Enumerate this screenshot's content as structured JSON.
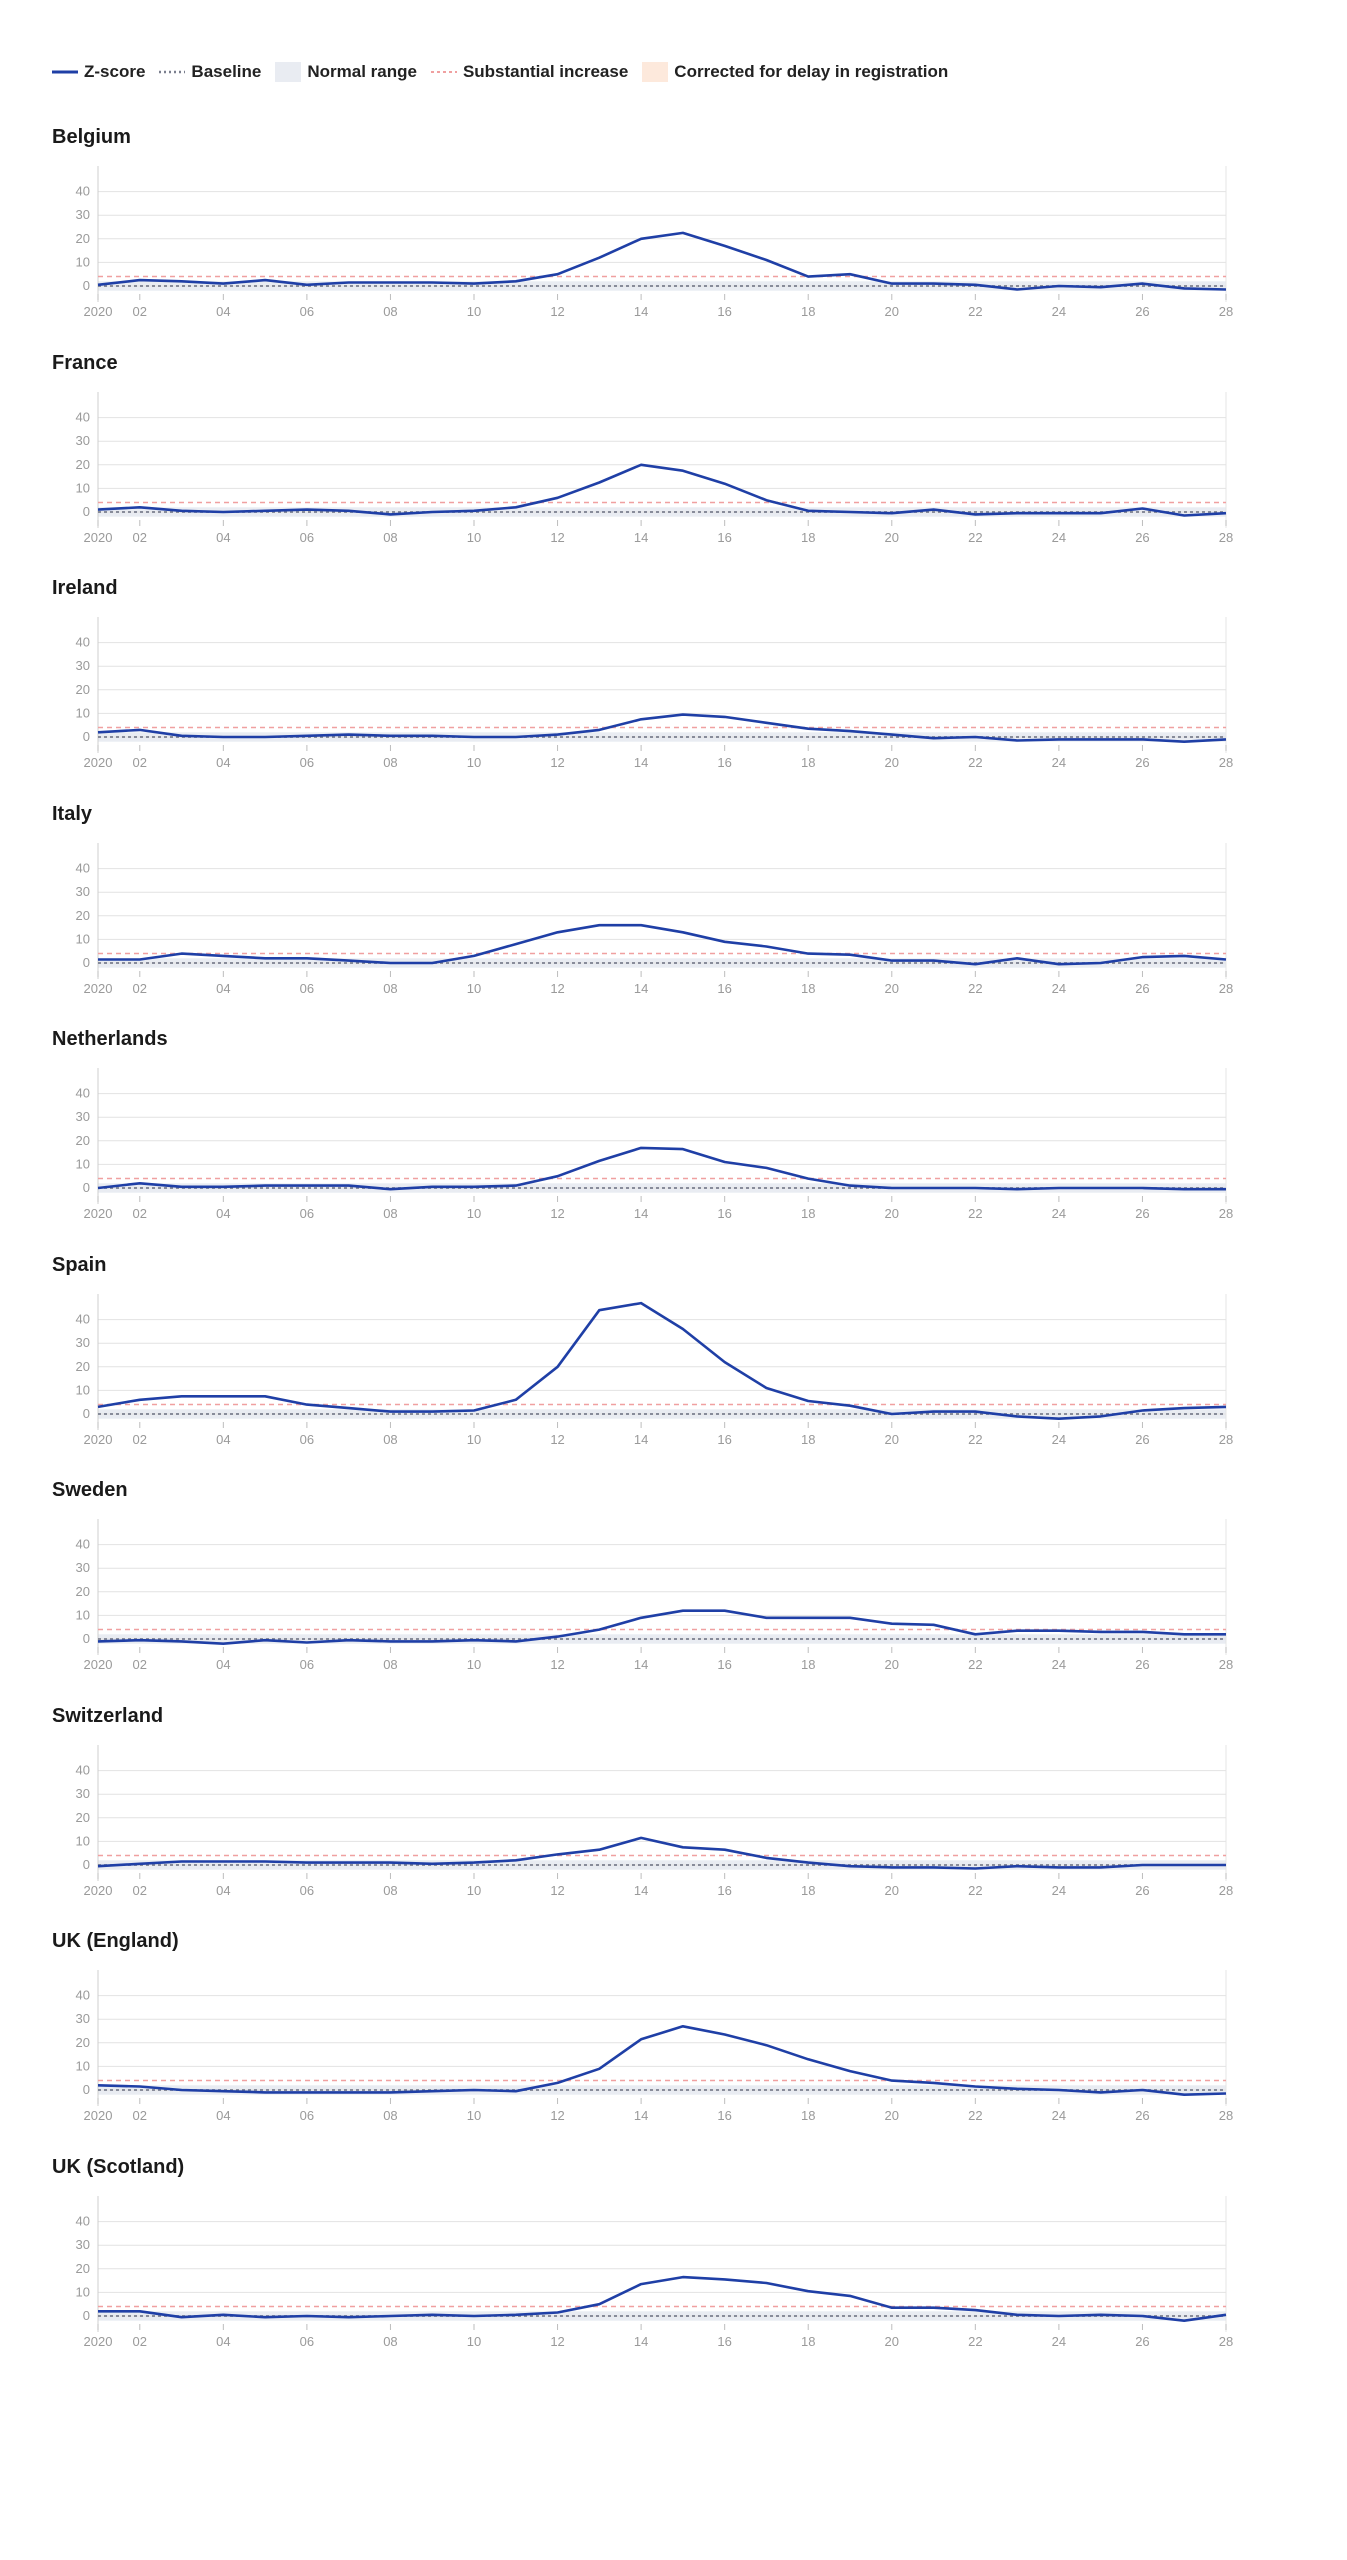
{
  "legend": {
    "items": [
      {
        "key": "zscore",
        "label": "Z-score",
        "icon": "solid-line-icon"
      },
      {
        "key": "baseline",
        "label": "Baseline",
        "icon": "dotted-line-icon"
      },
      {
        "key": "normal",
        "label": "Normal range",
        "icon": "shaded-box-icon"
      },
      {
        "key": "substantial",
        "label": "Substantial increase",
        "icon": "dashed-line-icon"
      },
      {
        "key": "corrected",
        "label": "Corrected for delay in registration",
        "icon": "shaded-box-icon"
      }
    ]
  },
  "colors": {
    "zscore": "#1f3fa6",
    "baseline": "#7a7f8e",
    "normal": "#e9ecf2",
    "substantial": "#f0a0a0",
    "corrected": "#fde9dc",
    "grid": "#e2e2e2",
    "tick": "#9a9a9a"
  },
  "chart_data": [
    {
      "type": "line",
      "title": "Belgium",
      "xticks": [
        "2020",
        "02",
        "04",
        "06",
        "08",
        "10",
        "12",
        "14",
        "16",
        "18",
        "20",
        "22",
        "24",
        "26",
        "28"
      ],
      "yticks": [
        "0",
        "10",
        "20",
        "30",
        "40"
      ],
      "ylim": [
        -3,
        45
      ],
      "x": [
        1,
        2,
        3,
        4,
        5,
        6,
        7,
        8,
        9,
        10,
        11,
        12,
        13,
        14,
        15,
        16,
        17,
        18,
        19,
        20,
        21,
        22,
        23,
        24,
        25,
        26,
        27,
        28
      ],
      "series": [
        {
          "values": [
            0.5,
            2.5,
            2,
            1,
            2.5,
            0.5,
            1.5,
            1.5,
            1.5,
            1,
            2,
            5,
            12,
            20,
            22.5,
            17,
            11,
            4,
            5,
            1,
            1,
            0.5,
            -1.5,
            0,
            -0.5,
            1,
            -1,
            -1.5
          ]
        }
      ],
      "baseline": 0,
      "normal_range": [
        -2,
        2
      ],
      "substantial_increase": 4
    },
    {
      "type": "line",
      "title": "France",
      "xticks": [
        "2020",
        "02",
        "04",
        "06",
        "08",
        "10",
        "12",
        "14",
        "16",
        "18",
        "20",
        "22",
        "24",
        "26",
        "28"
      ],
      "yticks": [
        "0",
        "10",
        "20",
        "30",
        "40"
      ],
      "ylim": [
        -3,
        45
      ],
      "x": [
        1,
        2,
        3,
        4,
        5,
        6,
        7,
        8,
        9,
        10,
        11,
        12,
        13,
        14,
        15,
        16,
        17,
        18,
        19,
        20,
        21,
        22,
        23,
        24,
        25,
        26,
        27,
        28
      ],
      "series": [
        {
          "values": [
            1,
            2,
            0.5,
            0,
            0.5,
            1,
            0.5,
            -1,
            0,
            0.5,
            2,
            6,
            12.5,
            20,
            17.5,
            12,
            5,
            0.5,
            0,
            -0.5,
            1,
            -1,
            -0.5,
            -0.5,
            -0.5,
            1.5,
            -1.5,
            -0.5
          ]
        }
      ],
      "baseline": 0,
      "normal_range": [
        -2,
        2
      ],
      "substantial_increase": 4
    },
    {
      "type": "line",
      "title": "Ireland",
      "xticks": [
        "2020",
        "02",
        "04",
        "06",
        "08",
        "10",
        "12",
        "14",
        "16",
        "18",
        "20",
        "22",
        "24",
        "26",
        "28"
      ],
      "yticks": [
        "0",
        "10",
        "20",
        "30",
        "40"
      ],
      "ylim": [
        -3,
        45
      ],
      "x": [
        1,
        2,
        3,
        4,
        5,
        6,
        7,
        8,
        9,
        10,
        11,
        12,
        13,
        14,
        15,
        16,
        17,
        18,
        19,
        20,
        21,
        22,
        23,
        24,
        25,
        26,
        27,
        28
      ],
      "series": [
        {
          "values": [
            2,
            3,
            0.5,
            0,
            0,
            0.5,
            1,
            0.5,
            0.5,
            0,
            0,
            1,
            3,
            7.5,
            9.5,
            8.5,
            6,
            3.5,
            2.5,
            1,
            -0.5,
            0,
            -1.5,
            -1,
            -1,
            -1,
            -2,
            -1
          ]
        }
      ],
      "baseline": 0,
      "normal_range": [
        -2,
        2
      ],
      "substantial_increase": 4
    },
    {
      "type": "line",
      "title": "Italy",
      "xticks": [
        "2020",
        "02",
        "04",
        "06",
        "08",
        "10",
        "12",
        "14",
        "16",
        "18",
        "20",
        "22",
        "24",
        "26",
        "28"
      ],
      "yticks": [
        "0",
        "10",
        "20",
        "30",
        "40"
      ],
      "ylim": [
        -3,
        45
      ],
      "x": [
        1,
        2,
        3,
        4,
        5,
        6,
        7,
        8,
        9,
        10,
        11,
        12,
        13,
        14,
        15,
        16,
        17,
        18,
        19,
        20,
        21,
        22,
        23,
        24,
        25,
        26,
        27,
        28
      ],
      "series": [
        {
          "values": [
            1.5,
            1.5,
            4,
            3,
            2,
            2,
            1,
            0,
            0,
            3,
            8,
            13,
            16,
            16,
            13,
            9,
            7,
            4,
            3.5,
            1,
            1,
            -0.5,
            2,
            -0.5,
            0,
            2.5,
            3,
            1.5
          ]
        }
      ],
      "baseline": 0,
      "normal_range": [
        -2,
        2
      ],
      "substantial_increase": 4
    },
    {
      "type": "line",
      "title": "Netherlands",
      "xticks": [
        "2020",
        "02",
        "04",
        "06",
        "08",
        "10",
        "12",
        "14",
        "16",
        "18",
        "20",
        "22",
        "24",
        "26",
        "28"
      ],
      "yticks": [
        "0",
        "10",
        "20",
        "30",
        "40"
      ],
      "ylim": [
        -3,
        45
      ],
      "x": [
        1,
        2,
        3,
        4,
        5,
        6,
        7,
        8,
        9,
        10,
        11,
        12,
        13,
        14,
        15,
        16,
        17,
        18,
        19,
        20,
        21,
        22,
        23,
        24,
        25,
        26,
        27,
        28
      ],
      "series": [
        {
          "values": [
            0,
            2,
            0.5,
            0.5,
            1,
            1,
            1,
            -0.5,
            0.5,
            0.5,
            1,
            5,
            11.5,
            17,
            16.5,
            11,
            8.5,
            4,
            1,
            0,
            0,
            0,
            -0.5,
            0,
            0,
            0,
            -0.5,
            -0.5
          ]
        }
      ],
      "baseline": 0,
      "normal_range": [
        -2,
        2
      ],
      "substantial_increase": 4
    },
    {
      "type": "line",
      "title": "Spain",
      "xticks": [
        "2020",
        "02",
        "04",
        "06",
        "08",
        "10",
        "12",
        "14",
        "16",
        "18",
        "20",
        "22",
        "24",
        "26",
        "28"
      ],
      "yticks": [
        "0",
        "10",
        "20",
        "30",
        "40"
      ],
      "ylim": [
        -3,
        48
      ],
      "x": [
        1,
        2,
        3,
        4,
        5,
        6,
        7,
        8,
        9,
        10,
        11,
        12,
        13,
        14,
        15,
        16,
        17,
        18,
        19,
        20,
        21,
        22,
        23,
        24,
        25,
        26,
        27,
        28
      ],
      "series": [
        {
          "values": [
            3,
            6,
            7.5,
            7.5,
            7.5,
            4,
            2.5,
            1,
            1,
            1.5,
            6,
            20,
            44,
            47,
            36,
            22,
            11,
            5.5,
            3.5,
            0,
            1,
            1,
            -1,
            -2,
            -1,
            1.5,
            2.5,
            3
          ]
        }
      ],
      "baseline": 0,
      "normal_range": [
        -2,
        2
      ],
      "substantial_increase": 4
    },
    {
      "type": "line",
      "title": "Sweden",
      "xticks": [
        "2020",
        "02",
        "04",
        "06",
        "08",
        "10",
        "12",
        "14",
        "16",
        "18",
        "20",
        "22",
        "24",
        "26",
        "28"
      ],
      "yticks": [
        "0",
        "10",
        "20",
        "30",
        "40"
      ],
      "ylim": [
        -3,
        45
      ],
      "x": [
        1,
        2,
        3,
        4,
        5,
        6,
        7,
        8,
        9,
        10,
        11,
        12,
        13,
        14,
        15,
        16,
        17,
        18,
        19,
        20,
        21,
        22,
        23,
        24,
        25,
        26,
        27,
        28
      ],
      "series": [
        {
          "values": [
            -1,
            -0.5,
            -1,
            -2,
            -0.5,
            -1.5,
            -0.5,
            -1,
            -1,
            -0.5,
            -1,
            1,
            4,
            9,
            12,
            12,
            9,
            9,
            9,
            6.5,
            6,
            2,
            3.5,
            3.5,
            3,
            3,
            2,
            2
          ]
        }
      ],
      "baseline": 0,
      "normal_range": [
        -2,
        2
      ],
      "substantial_increase": 4
    },
    {
      "type": "line",
      "title": "Switzerland",
      "xticks": [
        "2020",
        "02",
        "04",
        "06",
        "08",
        "10",
        "12",
        "14",
        "16",
        "18",
        "20",
        "22",
        "24",
        "26",
        "28"
      ],
      "yticks": [
        "0",
        "10",
        "20",
        "30",
        "40"
      ],
      "ylim": [
        -3,
        45
      ],
      "x": [
        1,
        2,
        3,
        4,
        5,
        6,
        7,
        8,
        9,
        10,
        11,
        12,
        13,
        14,
        15,
        16,
        17,
        18,
        19,
        20,
        21,
        22,
        23,
        24,
        25,
        26,
        27,
        28
      ],
      "series": [
        {
          "values": [
            -0.5,
            0.5,
            1.5,
            1.5,
            1.5,
            1,
            1,
            1,
            0.5,
            1,
            2,
            4.5,
            6.5,
            11.5,
            7.5,
            6.5,
            3,
            1,
            -0.5,
            -1,
            -1,
            -1.5,
            -0.5,
            -1,
            -1,
            0,
            0,
            0
          ]
        }
      ],
      "baseline": 0,
      "normal_range": [
        -2,
        2
      ],
      "substantial_increase": 4
    },
    {
      "type": "line",
      "title": "UK (England)",
      "xticks": [
        "2020",
        "02",
        "04",
        "06",
        "08",
        "10",
        "12",
        "14",
        "16",
        "18",
        "20",
        "22",
        "24",
        "26",
        "28"
      ],
      "yticks": [
        "0",
        "10",
        "20",
        "30",
        "40"
      ],
      "ylim": [
        -3,
        45
      ],
      "x": [
        1,
        2,
        3,
        4,
        5,
        6,
        7,
        8,
        9,
        10,
        11,
        12,
        13,
        14,
        15,
        16,
        17,
        18,
        19,
        20,
        21,
        22,
        23,
        24,
        25,
        26,
        27,
        28
      ],
      "series": [
        {
          "values": [
            2,
            1.5,
            0,
            -0.5,
            -1,
            -1,
            -1,
            -1,
            -0.5,
            0,
            -0.5,
            3,
            9,
            21.5,
            27,
            23.5,
            19,
            13,
            8,
            4,
            3,
            1.5,
            0.5,
            0,
            -1,
            0,
            -2,
            -1.5
          ]
        }
      ],
      "baseline": 0,
      "normal_range": [
        -2,
        2
      ],
      "substantial_increase": 4
    },
    {
      "type": "line",
      "title": "UK (Scotland)",
      "xticks": [
        "2020",
        "02",
        "04",
        "06",
        "08",
        "10",
        "12",
        "14",
        "16",
        "18",
        "20",
        "22",
        "24",
        "26",
        "28"
      ],
      "yticks": [
        "0",
        "10",
        "20",
        "30",
        "40"
      ],
      "ylim": [
        -3,
        45
      ],
      "x": [
        1,
        2,
        3,
        4,
        5,
        6,
        7,
        8,
        9,
        10,
        11,
        12,
        13,
        14,
        15,
        16,
        17,
        18,
        19,
        20,
        21,
        22,
        23,
        24,
        25,
        26,
        27,
        28
      ],
      "series": [
        {
          "values": [
            2,
            2,
            -0.5,
            0.5,
            -0.5,
            0,
            -0.5,
            0,
            0.5,
            0,
            0.5,
            1.5,
            5,
            13.5,
            16.5,
            15.5,
            14,
            10.5,
            8.5,
            3.5,
            3.5,
            2.5,
            0.5,
            0,
            0.5,
            0,
            -2,
            0.5
          ]
        }
      ],
      "baseline": 0,
      "normal_range": [
        -2,
        2
      ],
      "substantial_increase": 4
    }
  ]
}
